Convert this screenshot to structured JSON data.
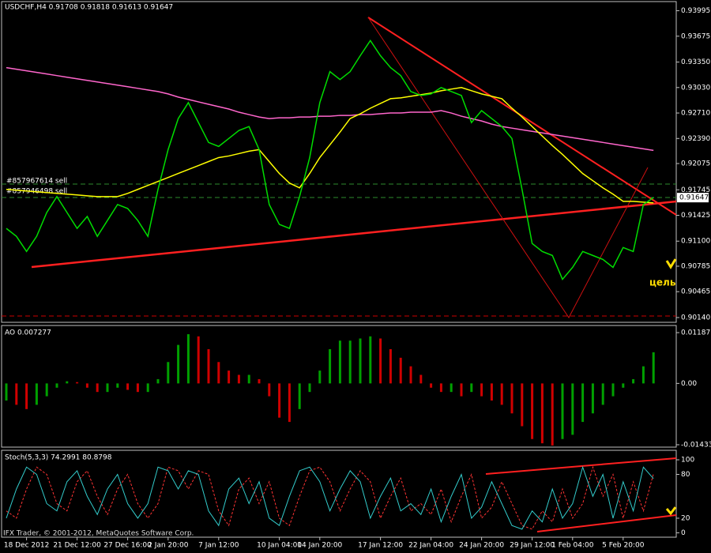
{
  "chart_data": [
    {
      "type": "line",
      "title": "USDCHF,H4  0.91708 0.91818 0.91613 0.91647",
      "ylim": [
        0.9008,
        0.9411
      ],
      "yticks": [
        0.93995,
        0.93675,
        {
          "value": 0.9335,
          "label": "0.93350"
        },
        {
          "value": 0.9303,
          "label": "0.93030"
        },
        {
          "value": 0.9271,
          "label": "0.92710"
        },
        {
          "value": 0.9239,
          "label": "0.92390"
        },
        0.92075,
        0.91745,
        0.91425,
        {
          "value": 0.911,
          "label": "0.91100"
        },
        0.90785,
        0.90465,
        {
          "value": 0.9014,
          "label": "0.90140"
        }
      ],
      "current_price": 0.91647,
      "annotations": [
        "#857967614 sell",
        "#857946498 sell",
        "цель"
      ],
      "grid": false,
      "series": [
        {
          "color": "#ff66cc",
          "values": [
            0.9328,
            0.9326,
            0.9324,
            0.9322,
            0.932,
            0.9318,
            0.9316,
            0.9314,
            0.9312,
            0.931,
            0.9308,
            0.9306,
            0.9304,
            0.9302,
            0.93,
            0.9298,
            0.9295,
            0.9291,
            0.9288,
            0.9285,
            0.9282,
            0.9279,
            0.9276,
            0.9272,
            0.9269,
            0.9266,
            0.9264,
            0.9265,
            0.9265,
            0.9266,
            0.9266,
            0.9267,
            0.9267,
            0.9268,
            0.9268,
            0.9269,
            0.9269,
            0.927,
            0.9271,
            0.9271,
            0.9272,
            0.9272,
            0.9272,
            0.9274,
            0.9271,
            0.9267,
            0.9264,
            0.9261,
            0.9257,
            0.9254,
            0.9252,
            0.925,
            0.9248,
            0.9246,
            0.9244,
            0.9242,
            0.924,
            0.9238,
            0.9236,
            0.9234,
            0.9232,
            0.923,
            0.9228,
            0.9226,
            0.9224
          ]
        },
        {
          "color": "#ffff00",
          "values": [
            0.9175,
            0.9174,
            0.9173,
            0.9172,
            0.9171,
            0.917,
            0.9169,
            0.9168,
            0.9167,
            0.9166,
            0.9166,
            0.9166,
            0.917,
            0.9175,
            0.918,
            0.9185,
            0.919,
            0.9195,
            0.92,
            0.9205,
            0.921,
            0.9215,
            0.9217,
            0.922,
            0.9223,
            0.9225,
            0.921,
            0.9195,
            0.9183,
            0.9177,
            0.9195,
            0.9215,
            0.9231,
            0.9247,
            0.9264,
            0.927,
            0.9277,
            0.9283,
            0.9289,
            0.929,
            0.9292,
            0.9294,
            0.9296,
            0.9299,
            0.9301,
            0.9303,
            0.9299,
            0.9295,
            0.9292,
            0.9289,
            0.9277,
            0.9266,
            0.9254,
            0.9242,
            0.923,
            0.9219,
            0.9207,
            0.9195,
            0.9186,
            0.9177,
            0.9169,
            0.916,
            0.916,
            0.9159,
            0.9158
          ]
        },
        {
          "color": "#00dd00",
          "values": [
            0.9126,
            0.9116,
            0.9097,
            0.9116,
            0.9146,
            0.9166,
            0.9146,
            0.9126,
            0.9141,
            0.9116,
            0.9136,
            0.9156,
            0.9151,
            0.9136,
            0.9116,
            0.9175,
            0.9225,
            0.9264,
            0.9284,
            0.9259,
            0.9234,
            0.9229,
            0.9239,
            0.9249,
            0.9254,
            0.9225,
            0.9156,
            0.9131,
            0.9126,
            0.9166,
            0.9215,
            0.9284,
            0.9323,
            0.9313,
            0.9323,
            0.9343,
            0.9362,
            0.9343,
            0.9328,
            0.9318,
            0.9298,
            0.9293,
            0.9295,
            0.9303,
            0.9298,
            0.9293,
            0.9259,
            0.9274,
            0.9264,
            0.9254,
            0.9239,
            0.9175,
            0.9107,
            0.9097,
            0.9092,
            0.9062,
            0.9077,
            0.9097,
            0.9092,
            0.9087,
            0.9077,
            0.9102,
            0.9097,
            0.9156,
            0.91647
          ]
        }
      ]
    },
    {
      "type": "histogram",
      "title": "AO 0.007277",
      "ylim": [
        -0.01489,
        0.01354
      ],
      "yticks": [
        0.01187,
        {
          "value": 0,
          "label": "0.00"
        },
        -0.01433
      ],
      "up_color": "#00a000",
      "down_color": "#d00000",
      "values": [
        -0.004,
        -0.005,
        -0.006,
        -0.005,
        -0.003,
        -0.001,
        0.0005,
        0.0003,
        -0.001,
        -0.002,
        -0.002,
        -0.001,
        -0.0015,
        -0.002,
        -0.002,
        0.001,
        0.005,
        0.009,
        0.0115,
        0.011,
        0.008,
        0.005,
        0.003,
        0.002,
        0.002,
        0.001,
        -0.003,
        -0.008,
        -0.009,
        -0.006,
        -0.002,
        0.003,
        0.008,
        0.01,
        0.01,
        0.0105,
        0.011,
        0.0105,
        0.008,
        0.006,
        0.004,
        0.002,
        -0.001,
        -0.002,
        -0.002,
        -0.003,
        -0.002,
        -0.003,
        -0.004,
        -0.005,
        -0.007,
        -0.01,
        -0.013,
        -0.014,
        -0.0145,
        -0.013,
        -0.012,
        -0.009,
        -0.007,
        -0.005,
        -0.003,
        -0.001,
        0.001,
        0.004,
        0.007277
      ]
    },
    {
      "type": "line",
      "title": "Stoch(5,3,3) 74.2991 80.8798",
      "ylim": [
        -6,
        113
      ],
      "yticks": [
        100,
        80,
        20,
        0
      ],
      "categories": [
        null,
        null,
        "18 Dec 2012",
        null,
        null,
        null,
        null,
        "21 Dec 12:00",
        null,
        null,
        null,
        null,
        "27 Dec 16:00",
        null,
        null,
        null,
        "2 Jan 20:00",
        null,
        null,
        null,
        null,
        "7 Jan 12:00",
        null,
        null,
        null,
        null,
        null,
        "10 Jan 04:00",
        null,
        null,
        null,
        "14 Jan 20:00",
        null,
        null,
        null,
        null,
        null,
        "17 Jan 12:00",
        null,
        null,
        null,
        null,
        "22 Jan 04:00",
        null,
        null,
        null,
        null,
        "24 Jan 20:00",
        null,
        null,
        null,
        null,
        "29 Jan 12:00",
        null,
        null,
        null,
        "1 Feb 04:00",
        null,
        null,
        null,
        null,
        "5 Feb 20:00",
        null,
        null,
        null
      ],
      "series": [
        {
          "color": "#ff3333",
          "dash": true,
          "values": [
            30,
            20,
            60,
            90,
            80,
            40,
            30,
            70,
            85,
            50,
            25,
            60,
            80,
            40,
            20,
            40,
            90,
            85,
            60,
            85,
            80,
            30,
            10,
            60,
            75,
            40,
            70,
            20,
            10,
            50,
            85,
            90,
            70,
            30,
            60,
            85,
            70,
            20,
            50,
            75,
            30,
            40,
            25,
            60,
            15,
            50,
            80,
            20,
            35,
            70,
            40,
            10,
            5,
            30,
            15,
            60,
            20,
            40,
            90,
            50,
            80,
            20,
            70,
            30,
            80.8798
          ]
        },
        {
          "color": "#33cccc",
          "dash": false,
          "values": [
            20,
            60,
            90,
            80,
            40,
            30,
            70,
            85,
            50,
            25,
            60,
            80,
            40,
            20,
            40,
            90,
            85,
            60,
            85,
            80,
            30,
            10,
            60,
            75,
            40,
            70,
            20,
            10,
            50,
            85,
            90,
            70,
            30,
            60,
            85,
            70,
            20,
            50,
            75,
            30,
            40,
            25,
            60,
            15,
            50,
            80,
            20,
            35,
            70,
            40,
            10,
            5,
            30,
            15,
            60,
            20,
            40,
            90,
            50,
            80,
            20,
            70,
            30,
            90,
            74.2991
          ]
        }
      ]
    }
  ],
  "footer": "IFX Trader, © 2001-2012, MetaQuotes Software Corp."
}
